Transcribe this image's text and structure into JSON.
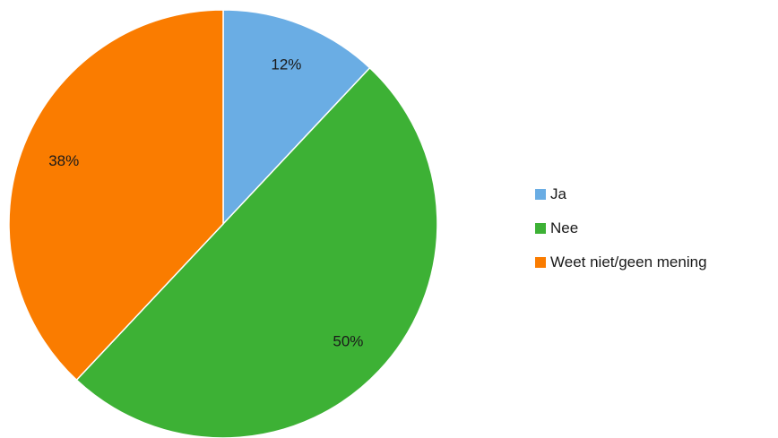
{
  "chart_data": {
    "type": "pie",
    "title": "",
    "categories": [
      "Ja",
      "Nee",
      "Weet niet/geen mening"
    ],
    "values": [
      12,
      50,
      38
    ],
    "value_labels": [
      "12%",
      "50%",
      "38%"
    ],
    "colors": [
      "#6aade4",
      "#3db135",
      "#fa7c00"
    ],
    "start_angle": "12 o'clock",
    "direction": "clockwise",
    "legend_position": "right"
  }
}
